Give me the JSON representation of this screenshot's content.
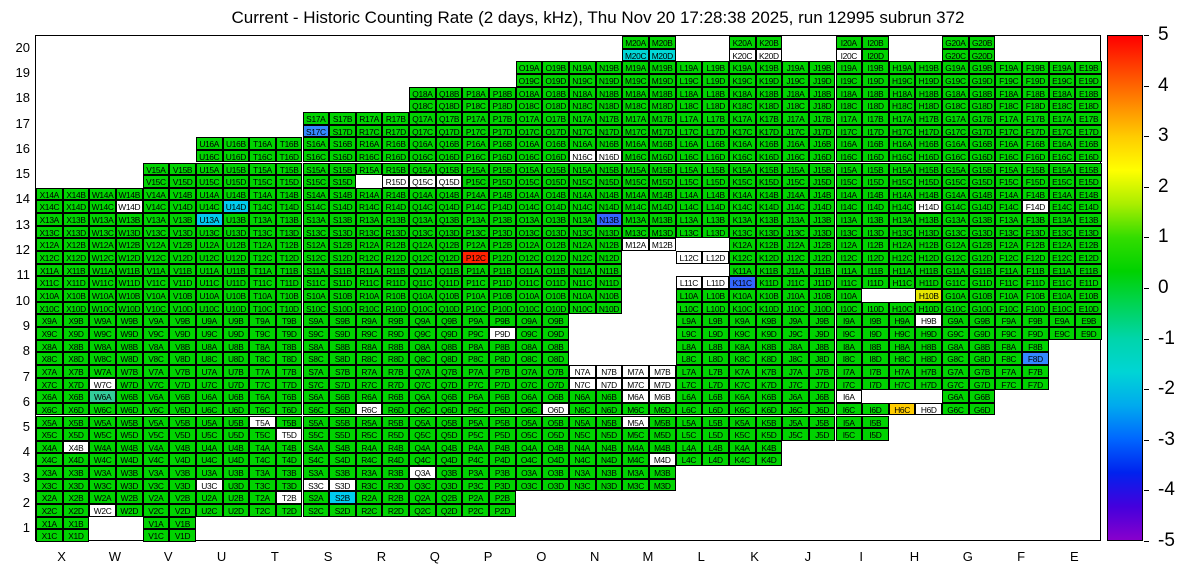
{
  "title": "Current - Historic Counting Rate (2 days, kHz), Thu Nov 20 17:28:38 2025, run 12995 subrun 372",
  "chart_data": {
    "type": "heatmap",
    "description": "Detector channel counting-rate map; 2x2 sub-cells (A,B,C,D) per column/row block; green = nominal (~0), colored cells deviate per colorbar, white labeled cells dead/off, blank areas no channel",
    "columns": [
      "X",
      "W",
      "V",
      "U",
      "T",
      "S",
      "R",
      "Q",
      "P",
      "O",
      "N",
      "M",
      "L",
      "K",
      "J",
      "I",
      "H",
      "G",
      "F",
      "E"
    ],
    "rows": [
      20,
      19,
      18,
      17,
      16,
      15,
      14,
      13,
      12,
      11,
      10,
      9,
      8,
      7,
      6,
      5,
      4,
      3,
      2,
      1
    ],
    "sub_cells": [
      "A",
      "B",
      "C",
      "D"
    ],
    "default_color": "#00d300",
    "default_value": 0.5,
    "row_blocks": [
      {
        "row": 20,
        "cols": [
          "M",
          "K",
          "I",
          "G"
        ]
      },
      {
        "row": 19,
        "from": "O",
        "to": "E"
      },
      {
        "row": 18,
        "from": "Q",
        "to": "E"
      },
      {
        "row": 17,
        "from": "S",
        "to": "E"
      },
      {
        "row": 16,
        "from": "U",
        "to": "E"
      },
      {
        "row": 15,
        "from": "V",
        "to": "E"
      },
      {
        "row": 14,
        "from": "X",
        "to": "E"
      },
      {
        "row": 13,
        "from": "X",
        "to": "E"
      },
      {
        "row": 12,
        "from": "X",
        "to": "E"
      },
      {
        "row": 11,
        "from": "X",
        "to": "E"
      },
      {
        "row": 10,
        "from": "X",
        "to": "E"
      },
      {
        "row": 9,
        "from": "X",
        "to": "E"
      },
      {
        "row": 8,
        "from": "X",
        "to": "F"
      },
      {
        "row": 7,
        "from": "X",
        "to": "F"
      },
      {
        "row": 6,
        "from": "X",
        "to": "G"
      },
      {
        "row": 5,
        "from": "X",
        "to": "I"
      },
      {
        "row": 4,
        "from": "X",
        "to": "K"
      },
      {
        "row": 3,
        "from": "X",
        "to": "M"
      },
      {
        "row": 2,
        "from": "X",
        "to": "P"
      },
      {
        "row": 1,
        "cols": [
          "X",
          "V"
        ]
      }
    ],
    "cell_overrides": {
      "colored": {
        "P12C": {
          "color": "#ff2200",
          "value": 5
        },
        "H10B": {
          "color": "#e8e800",
          "value": 2
        },
        "H6C": {
          "color": "#ffcc00",
          "value": 3
        },
        "W6A": {
          "color": "#33cc99",
          "value": -1
        },
        "S17C": {
          "color": "#3388ff",
          "value": -3
        },
        "F8D": {
          "color": "#3388ff",
          "value": -3
        },
        "U14D": {
          "color": "#00ccee",
          "value": -2
        },
        "U13A": {
          "color": "#00ccee",
          "value": -2
        },
        "S2B": {
          "color": "#00ccee",
          "value": -2
        },
        "M20C": {
          "color": "#00d8d8",
          "value": -2
        },
        "M20D": {
          "color": "#00d8d8",
          "value": -2
        },
        "N13B": {
          "color": "#3366ff",
          "value": -3.5
        },
        "K11C": {
          "color": "#3366ff",
          "value": -3.5
        }
      },
      "white_labeled": [
        "K20C",
        "K20D",
        "I20C",
        "N16C",
        "N16D",
        "Q15C",
        "Q15D",
        "R15D",
        "W14D",
        "H14D",
        "F14D",
        "M12A",
        "M12B",
        "L12C",
        "L12D",
        "L11C",
        "L11D",
        "P9D",
        "H9B",
        "N7A",
        "N7B",
        "N7C",
        "N7D",
        "M7A",
        "M7B",
        "M7C",
        "M7D",
        "W7C",
        "I6A",
        "H6D",
        "R6C",
        "O6D",
        "M6A",
        "M6B",
        "T5A",
        "T5D",
        "M5A",
        "X4B",
        "M4D",
        "U3C",
        "S3C",
        "S3D",
        "Q3A",
        "W2C",
        "T2B"
      ],
      "missing": [
        "R15C",
        "M12C",
        "M12D",
        "M11A",
        "M11B",
        "M11C",
        "M11D",
        "L12A",
        "L12B",
        "L11A",
        "L11B",
        "M10A",
        "M10B",
        "M10C",
        "M10D",
        "I10B",
        "H10A",
        "N9A",
        "N9B",
        "N9C",
        "N9D",
        "M9A",
        "M9B",
        "M9C",
        "M9D",
        "N8A",
        "N8B",
        "N8C",
        "N8D",
        "M8A",
        "M8B",
        "M8C",
        "M8D",
        "I6B",
        "H6A",
        "H6B"
      ]
    },
    "colorbar": {
      "min": -5,
      "max": 5,
      "tick_labels": [
        "5",
        "4",
        "3",
        "2",
        "1",
        "0",
        "-1",
        "-2",
        "-3",
        "-4",
        "-5"
      ],
      "gradient": [
        "#ff0000",
        "#ff4400",
        "#ff8800",
        "#ffcc00",
        "#ffff00",
        "#aaee00",
        "#33dd00",
        "#00d200",
        "#00d455",
        "#00d5aa",
        "#00d5d5",
        "#00aaee",
        "#0066ff",
        "#0022ee",
        "#4400dd",
        "#8800cc"
      ]
    }
  }
}
